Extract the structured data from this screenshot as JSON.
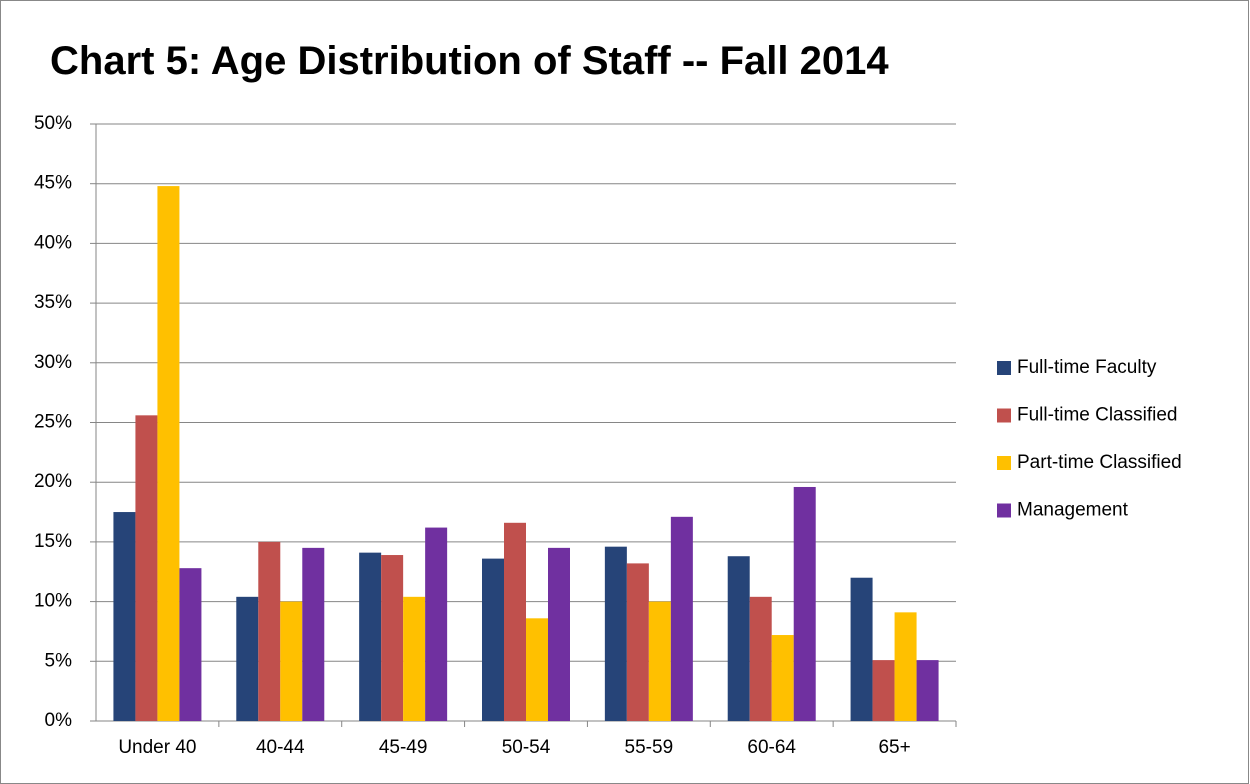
{
  "chart_data": {
    "type": "bar",
    "title": "Chart 5:  Age Distribution of Staff -- Fall 2014",
    "categories": [
      "Under 40",
      "40-44",
      "45-49",
      "50-54",
      "55-59",
      "60-64",
      "65+"
    ],
    "series": [
      {
        "name": "Full-time Faculty",
        "color": "#264478",
        "values": [
          17.5,
          10.4,
          14.1,
          13.6,
          14.6,
          13.8,
          12.0
        ]
      },
      {
        "name": "Full-time Classified",
        "color": "#c0504d",
        "values": [
          25.6,
          15.0,
          13.9,
          16.6,
          13.2,
          10.4,
          5.1
        ]
      },
      {
        "name": "Part-time Classified",
        "color": "#ffc000",
        "values": [
          44.8,
          10.0,
          10.4,
          8.6,
          10.0,
          7.2,
          9.1
        ]
      },
      {
        "name": "Management",
        "color": "#7030a0",
        "values": [
          12.8,
          14.5,
          16.2,
          14.5,
          17.1,
          19.6,
          5.1
        ]
      }
    ],
    "ylim": [
      0,
      50
    ],
    "yticks": [
      {
        "value": 0,
        "label": "0%"
      },
      {
        "value": 5,
        "label": "5%"
      },
      {
        "value": 10,
        "label": "10%"
      },
      {
        "value": 15,
        "label": "15%"
      },
      {
        "value": 20,
        "label": "20%"
      },
      {
        "value": 25,
        "label": "25%"
      },
      {
        "value": 30,
        "label": "30%"
      },
      {
        "value": 35,
        "label": "35%"
      },
      {
        "value": 40,
        "label": "40%"
      },
      {
        "value": 45,
        "label": "45%"
      },
      {
        "value": 50,
        "label": "50%"
      }
    ],
    "grid": true,
    "legend": "right"
  }
}
